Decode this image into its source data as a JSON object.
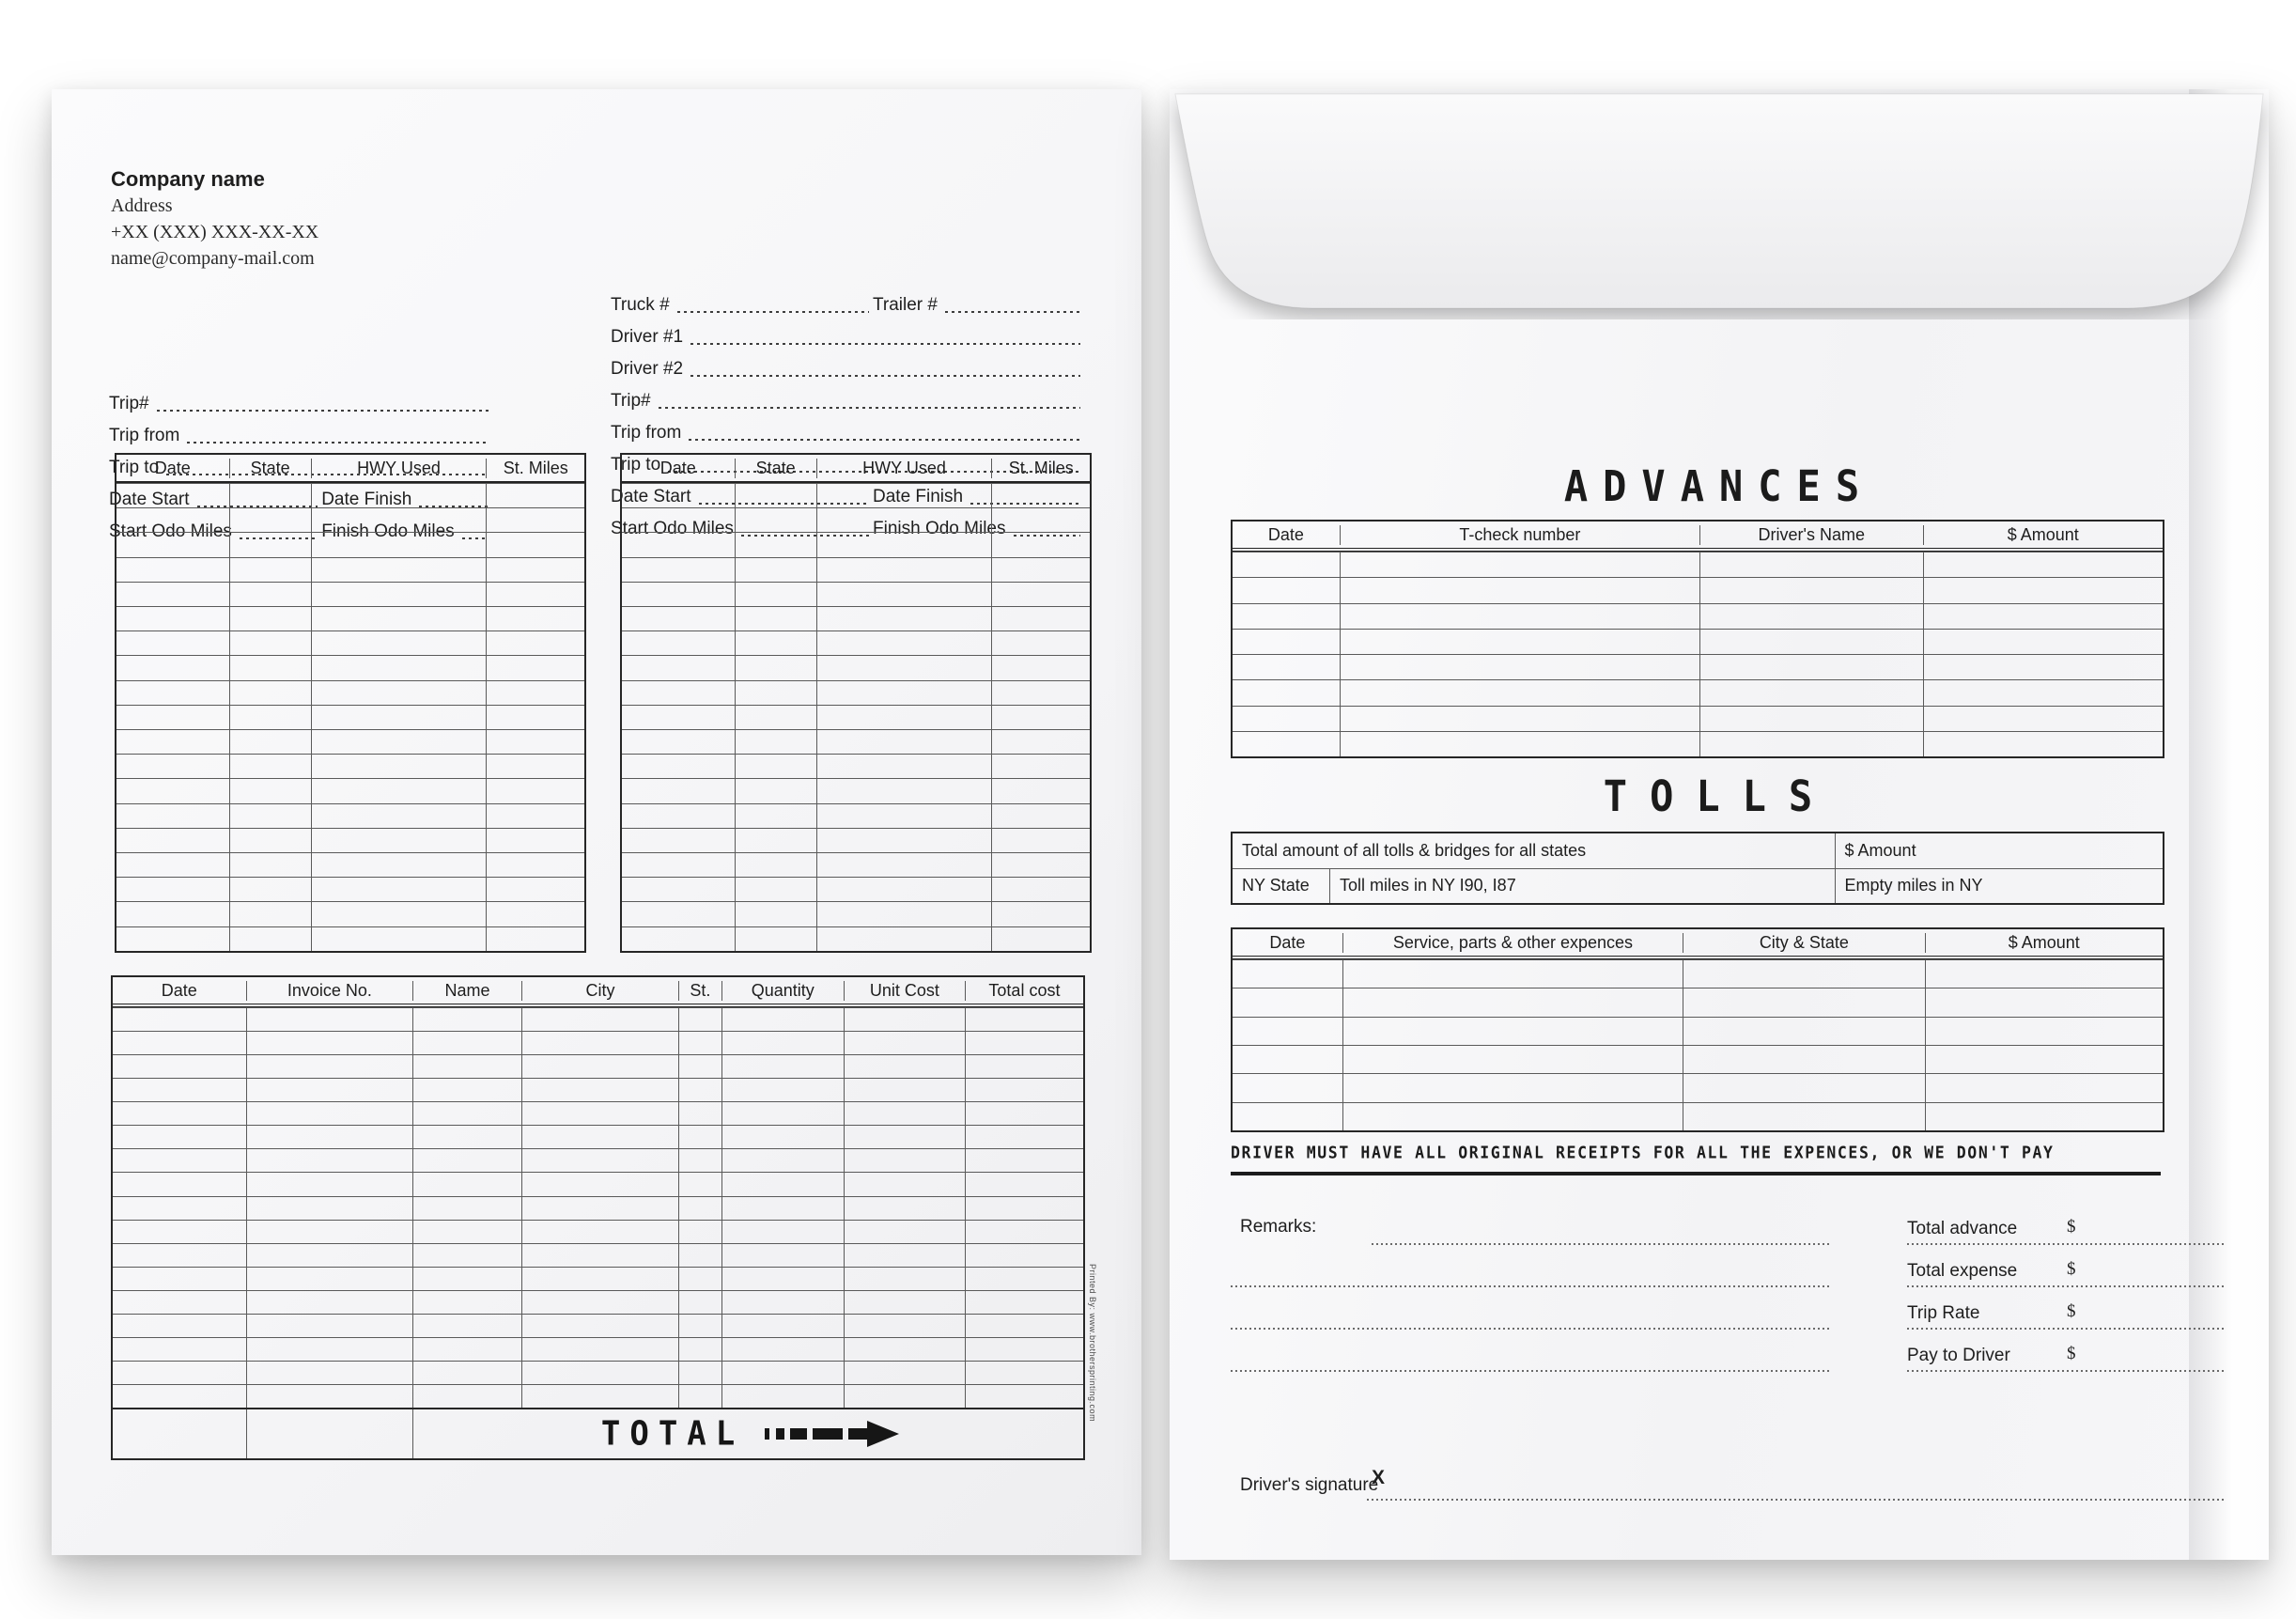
{
  "trip_sheet": {
    "company": {
      "name": "Company name",
      "address": "Address",
      "phone": "+XX (XXX) XXX-XX-XX",
      "email": "name@company-mail.com"
    },
    "left_fields": {
      "trip_no": "Trip#",
      "trip_from": "Trip from",
      "trip_to": "Trip to",
      "date_start": "Date Start",
      "date_finish": "Date Finish",
      "start_odo": "Start Odo Miles",
      "finish_odo": "Finish Odo Miles"
    },
    "right_fields": {
      "truck_no": "Truck #",
      "trailer_no": "Trailer #",
      "driver1": "Driver #1",
      "driver2": "Driver #2",
      "trip_no": "Trip#",
      "trip_from": "Trip from",
      "trip_to": "Trip to",
      "date_start": "Date Start",
      "date_finish": "Date Finish",
      "start_odo": "Start Odo Miles",
      "finish_odo": "Finish Odo Miles"
    },
    "mileage_table": {
      "headers": [
        "Date",
        "State",
        "HWY Used",
        "St. Miles"
      ],
      "rows": 19
    },
    "invoice_table": {
      "headers": [
        "Date",
        "Invoice No.",
        "Name",
        "City",
        "St.",
        "Quantity",
        "Unit Cost",
        "Total cost"
      ],
      "rows": 17,
      "total_label": "TOTAL"
    },
    "printed_by": "Printed By: www.brothersprinting.com"
  },
  "envelope": {
    "advances": {
      "title": "ADVANCES",
      "headers": [
        "Date",
        "T-check number",
        "Driver's Name",
        "$ Amount"
      ],
      "rows": 8
    },
    "tolls": {
      "title": "TOLLS",
      "total_label": "Total amount of all tolls & bridges for all states",
      "amount_label": "$ Amount",
      "ny_label": "NY State",
      "ny_miles_label": "Toll miles in NY I90, I87",
      "ny_empty_label": "Empty miles in NY"
    },
    "expenses": {
      "headers": [
        "Date",
        "Service, parts & other expences",
        "City & State",
        "$ Amount"
      ],
      "rows": 6
    },
    "notice": "DRIVER MUST HAVE ALL ORIGINAL RECEIPTS FOR ALL THE EXPENCES, OR WE DON'T PAY",
    "remarks_label": "Remarks:",
    "totals": [
      {
        "label": "Total advance",
        "currency": "$"
      },
      {
        "label": "Total expense",
        "currency": "$"
      },
      {
        "label": "Trip Rate",
        "currency": "$"
      },
      {
        "label": "Pay to Driver",
        "currency": "$"
      }
    ],
    "signature": {
      "label": "Driver's signature",
      "x_mark": "X"
    }
  }
}
